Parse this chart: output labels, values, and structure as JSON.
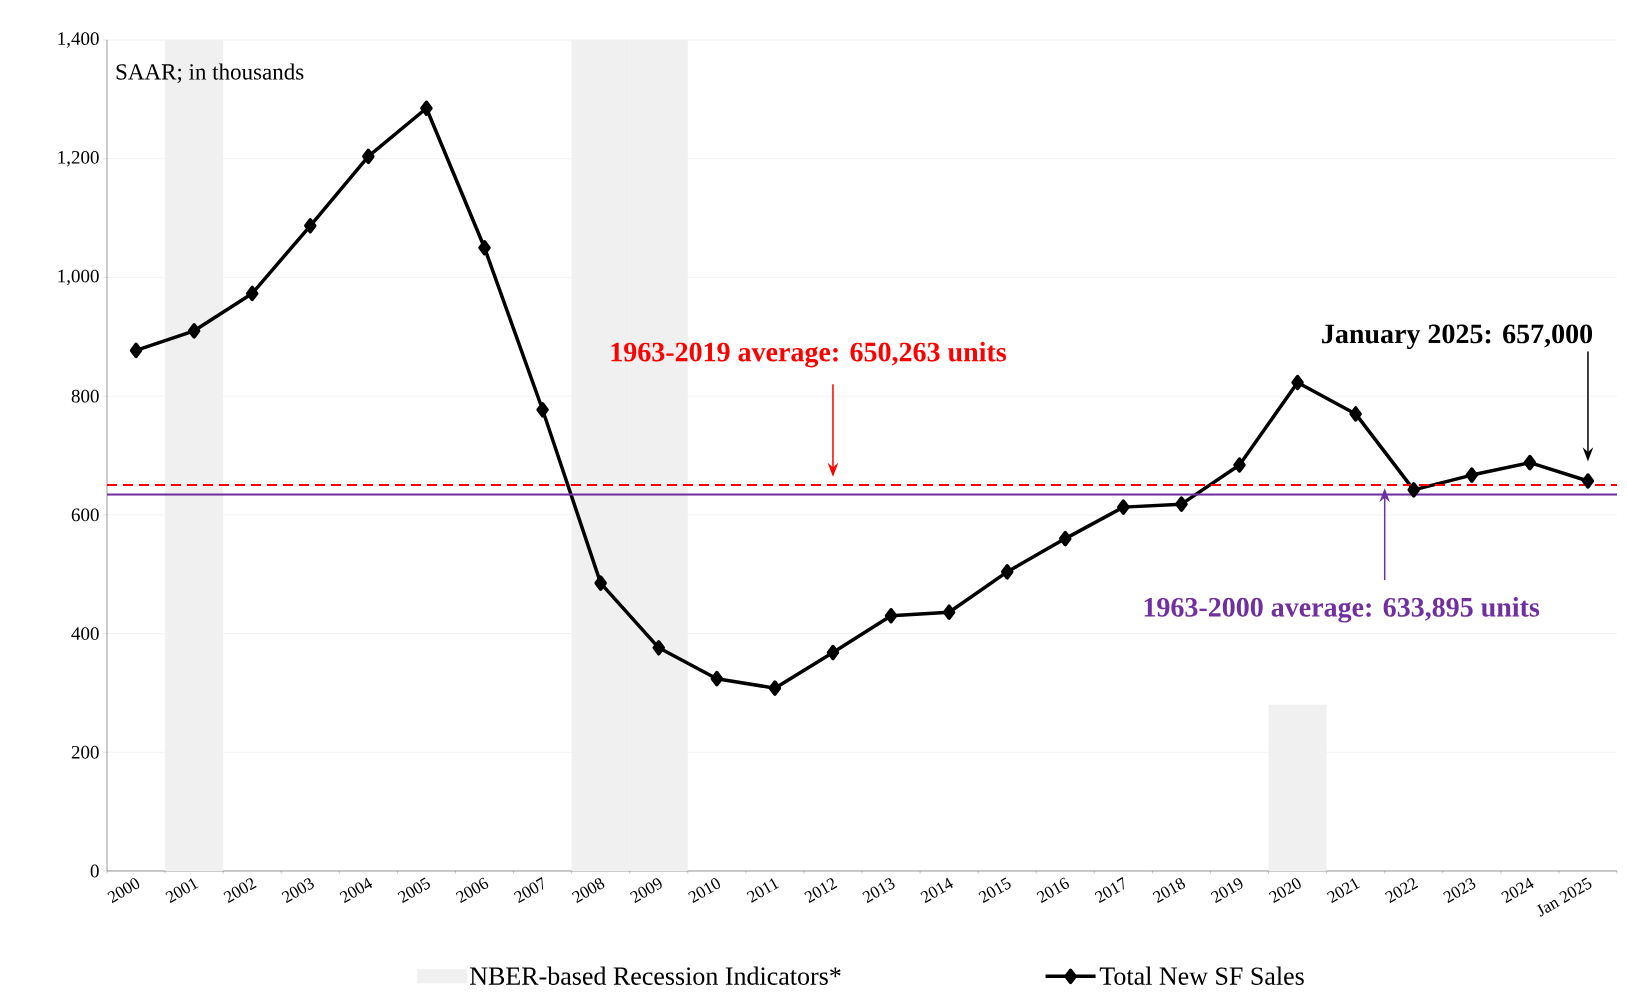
{
  "chart_data": {
    "type": "line",
    "categories": [
      "2000",
      "2001",
      "2002",
      "2003",
      "2004",
      "2005",
      "2006",
      "2007",
      "2008",
      "2009",
      "2010",
      "2011",
      "2012",
      "2013",
      "2014",
      "2015",
      "2016",
      "2017",
      "2018",
      "2019",
      "2020",
      "2021",
      "2022",
      "2023",
      "2024",
      "Jan 2025"
    ],
    "series": [
      {
        "name": "NBER-based Recession Indicators*",
        "type": "bar",
        "color": "#f0f0f0",
        "values": [
          null,
          1400,
          null,
          null,
          null,
          null,
          null,
          null,
          1400,
          1400,
          null,
          null,
          null,
          null,
          null,
          null,
          null,
          null,
          null,
          null,
          280,
          null,
          null,
          null,
          null,
          null
        ]
      },
      {
        "name": "Total New SF Sales",
        "color": "#000000",
        "marker": "diamond",
        "values": [
          877,
          910,
          973,
          1087,
          1204,
          1285,
          1050,
          777,
          485,
          376,
          324,
          308,
          368,
          430,
          436,
          504,
          560,
          613,
          618,
          684,
          823,
          770,
          642,
          667,
          688,
          657
        ]
      }
    ],
    "ylim": [
      0,
      1400
    ],
    "yticks": [
      0,
      200,
      400,
      600,
      800,
      {
        "value": 1000,
        "label": "1,000"
      },
      {
        "value": 1200,
        "label": "1,200"
      },
      {
        "value": 1400,
        "label": "1,400"
      }
    ],
    "grid": "y",
    "legend": "bottom",
    "ref_lines": [
      {
        "axis": "y",
        "value": 650.263,
        "label": "1963-2019 average: 650,263 units",
        "color": "#ff0000",
        "line_style": "dashed"
      },
      {
        "axis": "y",
        "value": 633.895,
        "label": "1963-2000 average: 633,895 units",
        "color": "#7030a0",
        "line_style": "solid"
      }
    ],
    "annotations": [
      "SAAR; in thousands",
      "January 2025: 657,000"
    ]
  }
}
